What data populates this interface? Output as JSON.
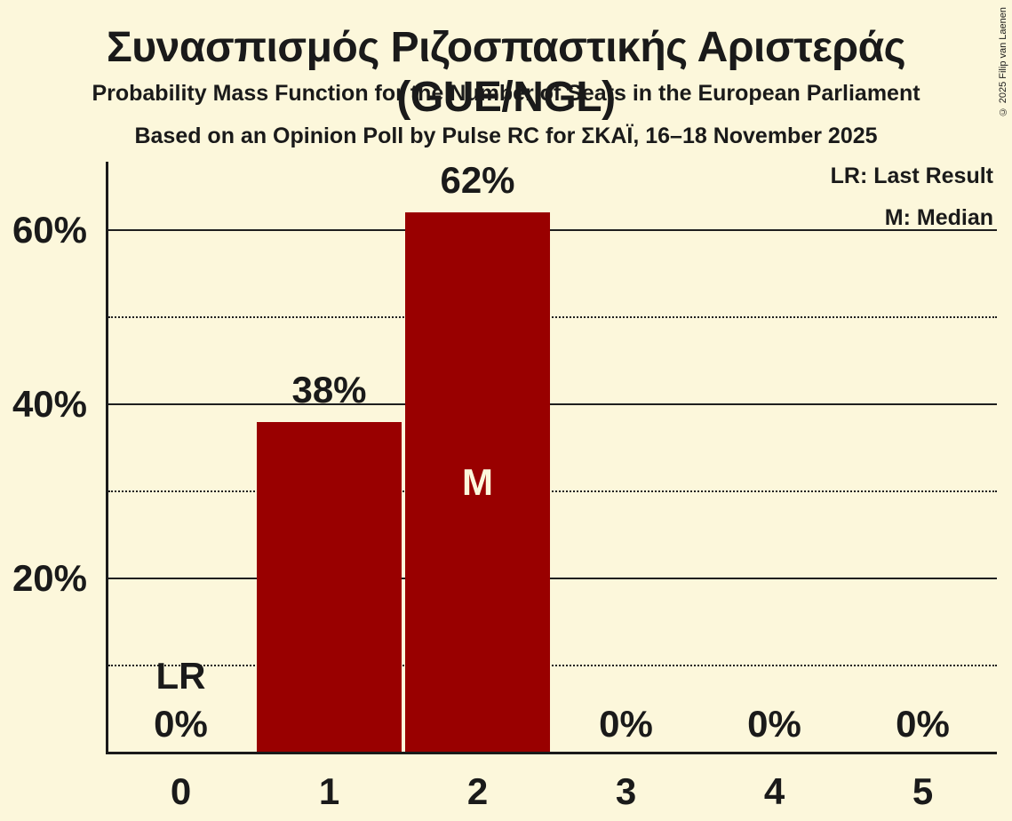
{
  "header": {
    "title": "Συνασπισμός Ριζοσπαστικής Αριστεράς (GUE/NGL)",
    "subtitle": "Probability Mass Function for the Number of Seats in the European Parliament",
    "poll_details": "Based on an Opinion Poll by Pulse RC for ΣΚΑΪ, 16–18 November 2025"
  },
  "legend": {
    "lr": "LR: Last Result",
    "m": "M: Median"
  },
  "copyright": "© 2025 Filip van Laenen",
  "chart_data": {
    "type": "bar",
    "title": "Συνασπισμός Ριζοσπαστικής Αριστεράς (GUE/NGL)",
    "subtitle": "Probability Mass Function for the Number of Seats in the European Parliament",
    "source_line": "Based on an Opinion Poll by Pulse RC for ΣΚΑΪ, 16–18 November 2025",
    "xlabel": "",
    "ylabel": "",
    "categories": [
      "0",
      "1",
      "2",
      "3",
      "4",
      "5"
    ],
    "values": [
      0,
      38,
      62,
      0,
      0,
      0
    ],
    "value_labels": [
      "0%",
      "38%",
      "62%",
      "0%",
      "0%",
      "0%"
    ],
    "ylim": [
      0,
      68
    ],
    "yticks": [
      20,
      40,
      60
    ],
    "ytick_labels": [
      "20%",
      "40%",
      "60%"
    ],
    "dotted_gridlines": [
      10,
      30,
      50
    ],
    "grid": true,
    "legend_position": "top-right",
    "median": {
      "category": "2",
      "label": "M"
    },
    "last_result": {
      "category": "0",
      "label": "LR"
    },
    "colors": {
      "bar": "#990000",
      "background": "#FCF7DB",
      "text": "#1A1A1A",
      "label_on_bar": "#FCF7DB"
    }
  }
}
